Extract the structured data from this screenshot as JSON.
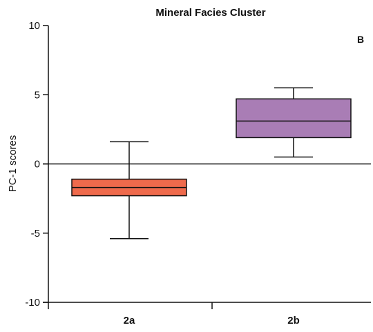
{
  "chart_data": {
    "type": "box",
    "title": "Mineral Facies Cluster",
    "panel_label": "B",
    "xlabel": "",
    "ylabel": "PC-1 scores",
    "ylim": [
      -10,
      10
    ],
    "yticks": [
      10,
      5,
      0,
      -5,
      -10
    ],
    "reference_line_y": 0,
    "categories": [
      "2a",
      "2b"
    ],
    "boxes": [
      {
        "category": "2a",
        "min": -5.4,
        "q1": -2.3,
        "median": -1.7,
        "q3": -1.1,
        "max": 1.6,
        "color": "#EF6A4C"
      },
      {
        "category": "2b",
        "min": 0.5,
        "q1": 1.9,
        "median": 3.1,
        "q3": 4.7,
        "max": 5.5,
        "color": "#A97DB5"
      }
    ],
    "grid": false,
    "axis_color": "#111111"
  }
}
